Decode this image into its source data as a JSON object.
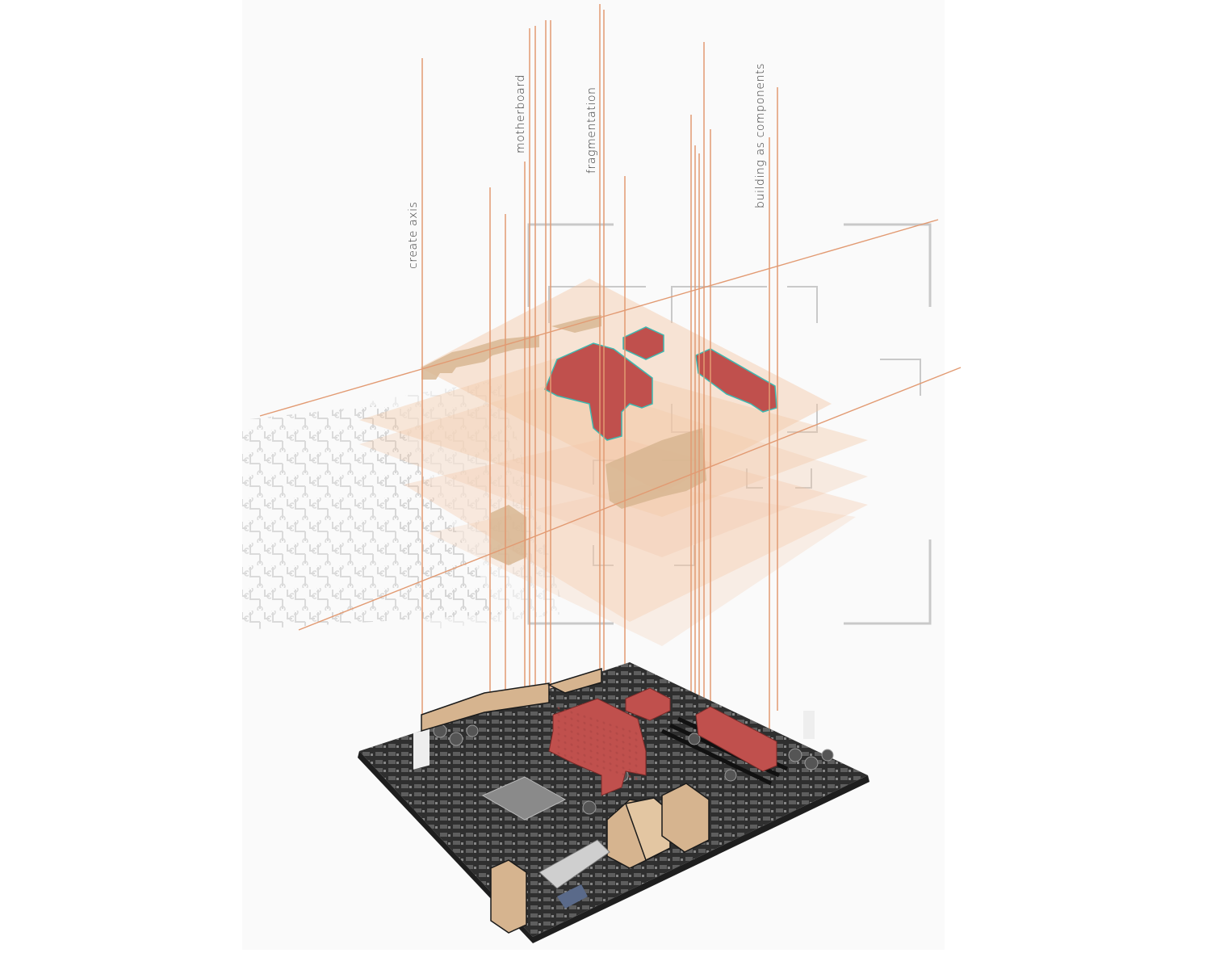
{
  "labels": {
    "create_axis": "create axis",
    "motherboard": "motherboard",
    "fragmentation": "fragmentation",
    "building_as_components": "building as components"
  },
  "colors": {
    "axis_line": "#e29a72",
    "layer_fill": "#f3c7a6",
    "component_red": "#c0504d",
    "component_tan": "#d6b48f",
    "frame_gray": "#c9c9c9",
    "board_dark": "#3a3a3a",
    "label_text": "#333333"
  }
}
